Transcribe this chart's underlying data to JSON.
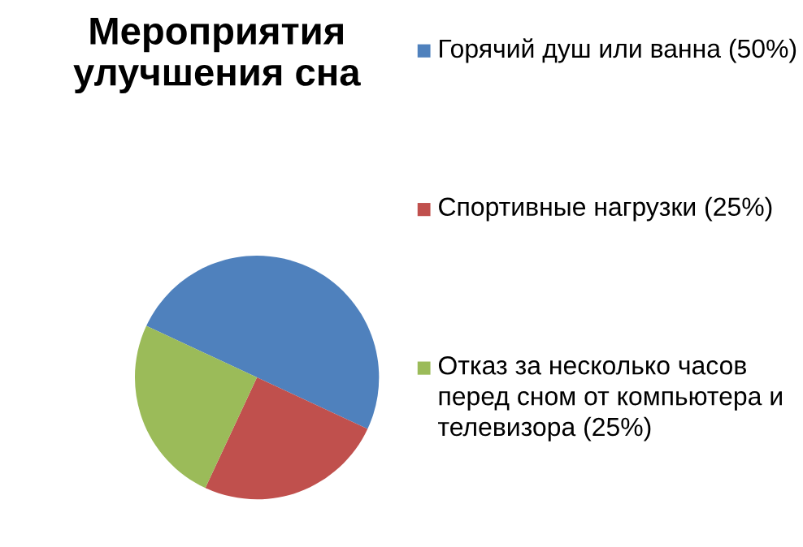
{
  "chart_data": {
    "type": "pie",
    "title": "Мероприятия улучшения сна",
    "categories": [
      "Горячий душ или ванна (50%)",
      "Спортивные нагрузки (25%)",
      "Отказ за несколько часов перед сном от компьютера и телевизора (25%)"
    ],
    "values": [
      50,
      25,
      25
    ],
    "colors": [
      "#4f81bd",
      "#c0504d",
      "#9bbb59"
    ],
    "legend": "right"
  }
}
